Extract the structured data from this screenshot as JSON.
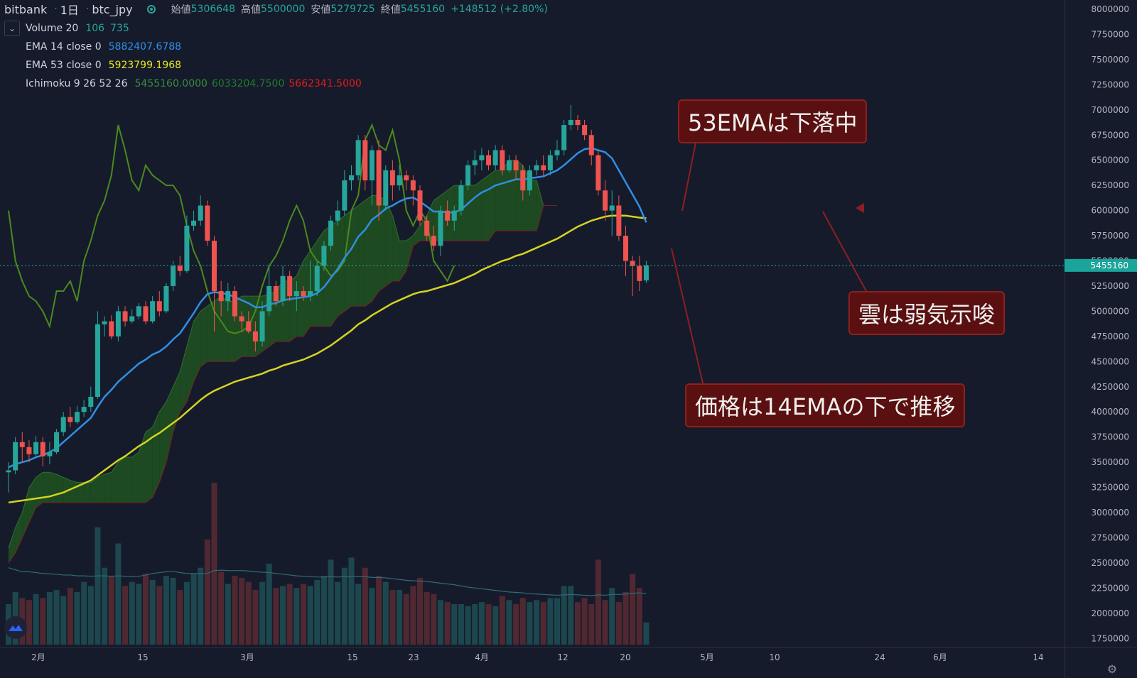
{
  "header": {
    "exchange": "bitbank",
    "interval": "1日",
    "symbol": "btc_jpy",
    "open_label": "始値",
    "open_value": "5306648",
    "high_label": "高値",
    "high_value": "5500000",
    "low_label": "安値",
    "low_value": "5279725",
    "close_label": "終値",
    "close_value": "5455160",
    "change": "+148512 (+2.80%)"
  },
  "indicators": {
    "volume": {
      "name": "Volume 20",
      "v1": "106",
      "v2": "735",
      "color": "#26a69a"
    },
    "ema14": {
      "name": "EMA 14 close 0",
      "value": "5882407.6788",
      "color": "#2f8fe5"
    },
    "ema53": {
      "name": "EMA 53 close 0",
      "value": "5923799.1968",
      "color": "#e6e621"
    },
    "ichimoku": {
      "name": "Ichimoku 9 26 52 26",
      "v1": "5455160.0000",
      "v2": "6033204.7500",
      "v3": "5662341.5000",
      "c1": "#388e3c",
      "c2": "#1b5e20",
      "c3": "#e21a1a"
    }
  },
  "price_axis": {
    "ticks": [
      "8000000",
      "7750000",
      "7500000",
      "7250000",
      "7000000",
      "6750000",
      "6500000",
      "6250000",
      "6000000",
      "5750000",
      "5500000",
      "5250000",
      "5000000",
      "4750000",
      "4500000",
      "4250000",
      "4000000",
      "3750000",
      "3500000",
      "3250000",
      "3000000",
      "2750000",
      "2500000",
      "2250000",
      "2000000",
      "1750000"
    ],
    "current_price": "5455160"
  },
  "time_axis": {
    "labels": [
      "2月",
      "15",
      "3月",
      "15",
      "23",
      "4月",
      "12",
      "20",
      "5月",
      "10",
      "24",
      "6月",
      "14"
    ]
  },
  "callouts": {
    "ema53": "53EMAは下落中",
    "cloud": "雲は弱気示唆",
    "price": "価格は14EMAの下で推移"
  },
  "colors": {
    "background": "#161b2b",
    "up": "#26a69a",
    "down": "#ef5350",
    "ema14": "#2f8fe5",
    "ema53": "#d4d422",
    "chikou": "#4a8a1e",
    "cloud_bull": "#1f4d21",
    "cloud_bear": "#5a1e1e",
    "callout_bg": "#5a1010"
  },
  "chart_data": {
    "type": "candlestick",
    "title": "",
    "x_range": [
      "2021-01-25",
      "2021-06-18"
    ],
    "ylim": [
      1700000,
      8100000
    ],
    "candles": [
      [
        3400000,
        3420000,
        3500000,
        3200000
      ],
      [
        3420000,
        3700000,
        3750000,
        3380000
      ],
      [
        3700000,
        3650000,
        3800000,
        3500000
      ],
      [
        3650000,
        3580000,
        3720000,
        3500000
      ],
      [
        3580000,
        3700000,
        3760000,
        3540000
      ],
      [
        3700000,
        3560000,
        3750000,
        3460000
      ],
      [
        3560000,
        3600000,
        3700000,
        3480000
      ],
      [
        3600000,
        3800000,
        3830000,
        3580000
      ],
      [
        3800000,
        3950000,
        4000000,
        3760000
      ],
      [
        3950000,
        3900000,
        4050000,
        3850000
      ],
      [
        3900000,
        4000000,
        4060000,
        3880000
      ],
      [
        4000000,
        4050000,
        4120000,
        3950000
      ],
      [
        4050000,
        4150000,
        4250000,
        4000000
      ],
      [
        4150000,
        4870000,
        5000000,
        4130000
      ],
      [
        4870000,
        4900000,
        4950000,
        4750000
      ],
      [
        4900000,
        4750000,
        4960000,
        4720000
      ],
      [
        4750000,
        5000000,
        5050000,
        4700000
      ],
      [
        5000000,
        4900000,
        5050000,
        4850000
      ],
      [
        4900000,
        4950000,
        5020000,
        4880000
      ],
      [
        4950000,
        5050000,
        5080000,
        4920000
      ],
      [
        5050000,
        4900000,
        5100000,
        4870000
      ],
      [
        4900000,
        5100000,
        5150000,
        4880000
      ],
      [
        5100000,
        5000000,
        5200000,
        4950000
      ],
      [
        5000000,
        5250000,
        5280000,
        4980000
      ],
      [
        5250000,
        5450000,
        5500000,
        5200000
      ],
      [
        5450000,
        5400000,
        5550000,
        5350000
      ],
      [
        5400000,
        5850000,
        5950000,
        5380000
      ],
      [
        5850000,
        5900000,
        6000000,
        5800000
      ],
      [
        5900000,
        6050000,
        6150000,
        5850000
      ],
      [
        6050000,
        5700000,
        6100000,
        5650000
      ],
      [
        5700000,
        5200000,
        5750000,
        4800000
      ],
      [
        5200000,
        5100000,
        5300000,
        4950000
      ],
      [
        5100000,
        5200000,
        5280000,
        5000000
      ],
      [
        5200000,
        4950000,
        5250000,
        4900000
      ],
      [
        4950000,
        4900000,
        5000000,
        4800000
      ],
      [
        4900000,
        4800000,
        5000000,
        4780000
      ],
      [
        4800000,
        4700000,
        4900000,
        4600000
      ],
      [
        4700000,
        5000000,
        5100000,
        4650000
      ],
      [
        5000000,
        5250000,
        5450000,
        4950000
      ],
      [
        5250000,
        5100000,
        5300000,
        5050000
      ],
      [
        5100000,
        5350000,
        5450000,
        5050000
      ],
      [
        5350000,
        5150000,
        5400000,
        5100000
      ],
      [
        5150000,
        5200000,
        5300000,
        5000000
      ],
      [
        5200000,
        5150000,
        5250000,
        5100000
      ],
      [
        5150000,
        5200000,
        5500000,
        5100000
      ],
      [
        5200000,
        5450000,
        5500000,
        5150000
      ],
      [
        5450000,
        5650000,
        5700000,
        5400000
      ],
      [
        5650000,
        5900000,
        5950000,
        5600000
      ],
      [
        5900000,
        6000000,
        6100000,
        5850000
      ],
      [
        6000000,
        6300000,
        6400000,
        5950000
      ],
      [
        6300000,
        6350000,
        6450000,
        6200000
      ],
      [
        6350000,
        6700000,
        6750000,
        6300000
      ],
      [
        6700000,
        6300000,
        6750000,
        6200000
      ],
      [
        6300000,
        6600000,
        6650000,
        6050000
      ],
      [
        6600000,
        6050000,
        6700000,
        5900000
      ],
      [
        6050000,
        6400000,
        6450000,
        6000000
      ],
      [
        6400000,
        6250000,
        6500000,
        6100000
      ],
      [
        6250000,
        6350000,
        6450000,
        6200000
      ],
      [
        6350000,
        6300000,
        6400000,
        6200000
      ],
      [
        6300000,
        6200000,
        6350000,
        6050000
      ],
      [
        6200000,
        5900000,
        6250000,
        5850000
      ],
      [
        5900000,
        5750000,
        5950000,
        5700000
      ],
      [
        5750000,
        5650000,
        5850000,
        5600000
      ],
      [
        5650000,
        6000000,
        6050000,
        5550000
      ],
      [
        6000000,
        5900000,
        6100000,
        5850000
      ],
      [
        5900000,
        6000000,
        6050000,
        5800000
      ],
      [
        6000000,
        6250000,
        6300000,
        5950000
      ],
      [
        6250000,
        6450000,
        6500000,
        6200000
      ],
      [
        6450000,
        6500000,
        6600000,
        6350000
      ],
      [
        6500000,
        6550000,
        6620000,
        6400000
      ],
      [
        6550000,
        6450000,
        6600000,
        6400000
      ],
      [
        6450000,
        6600000,
        6650000,
        6400000
      ],
      [
        6600000,
        6400000,
        6650000,
        6350000
      ],
      [
        6400000,
        6500000,
        6550000,
        6380000
      ],
      [
        6500000,
        6400000,
        6550000,
        6300000
      ],
      [
        6400000,
        6200000,
        6450000,
        6100000
      ],
      [
        6200000,
        6400000,
        6450000,
        6150000
      ],
      [
        6400000,
        6450000,
        6500000,
        6350000
      ],
      [
        6450000,
        6400000,
        6550000,
        6350000
      ],
      [
        6400000,
        6550000,
        6600000,
        6350000
      ],
      [
        6550000,
        6600000,
        6700000,
        6500000
      ],
      [
        6600000,
        6850000,
        6900000,
        6550000
      ],
      [
        6850000,
        6900000,
        7050000,
        6800000
      ],
      [
        6900000,
        6850000,
        6950000,
        6800000
      ],
      [
        6850000,
        6750000,
        6900000,
        6700000
      ],
      [
        6750000,
        6550000,
        6800000,
        6450000
      ],
      [
        6550000,
        6200000,
        6600000,
        6150000
      ],
      [
        6200000,
        6000000,
        6300000,
        5900000
      ],
      [
        6000000,
        6050000,
        6200000,
        5750000
      ],
      [
        6050000,
        5750000,
        6150000,
        5700000
      ],
      [
        5750000,
        5500000,
        5850000,
        5350000
      ],
      [
        5500000,
        5450000,
        5550000,
        5150000
      ],
      [
        5450000,
        5300000,
        5550000,
        5200000
      ],
      [
        5306648,
        5455160,
        5500000,
        5279725
      ]
    ],
    "ema14": [
      3450000,
      3480000,
      3500000,
      3520000,
      3550000,
      3570000,
      3600000,
      3640000,
      3700000,
      3760000,
      3820000,
      3880000,
      3940000,
      4050000,
      4150000,
      4220000,
      4300000,
      4360000,
      4420000,
      4480000,
      4520000,
      4570000,
      4600000,
      4650000,
      4720000,
      4780000,
      4880000,
      4980000,
      5090000,
      5170000,
      5190000,
      5180000,
      5170000,
      5140000,
      5110000,
      5080000,
      5040000,
      5040000,
      5070000,
      5080000,
      5110000,
      5120000,
      5130000,
      5140000,
      5150000,
      5180000,
      5240000,
      5330000,
      5420000,
      5530000,
      5620000,
      5740000,
      5810000,
      5910000,
      5960000,
      6020000,
      6050000,
      6090000,
      6120000,
      6130000,
      6090000,
      6040000,
      5990000,
      5990000,
      5980000,
      5980000,
      6010000,
      6070000,
      6130000,
      6180000,
      6210000,
      6250000,
      6270000,
      6290000,
      6310000,
      6310000,
      6320000,
      6330000,
      6340000,
      6370000,
      6400000,
      6450000,
      6510000,
      6570000,
      6610000,
      6620000,
      6600000,
      6580000,
      6520000,
      6400000,
      6280000,
      6160000,
      6040000,
      5882407
    ],
    "ema53": [
      3100000,
      3110000,
      3120000,
      3130000,
      3140000,
      3150000,
      3160000,
      3180000,
      3200000,
      3230000,
      3260000,
      3290000,
      3320000,
      3370000,
      3420000,
      3470000,
      3520000,
      3560000,
      3610000,
      3660000,
      3700000,
      3750000,
      3790000,
      3840000,
      3890000,
      3940000,
      4000000,
      4060000,
      4120000,
      4170000,
      4210000,
      4240000,
      4270000,
      4300000,
      4320000,
      4340000,
      4360000,
      4380000,
      4410000,
      4430000,
      4460000,
      4480000,
      4500000,
      4520000,
      4550000,
      4580000,
      4620000,
      4660000,
      4710000,
      4760000,
      4810000,
      4870000,
      4910000,
      4960000,
      5000000,
      5040000,
      5080000,
      5110000,
      5140000,
      5170000,
      5190000,
      5200000,
      5220000,
      5240000,
      5260000,
      5280000,
      5310000,
      5340000,
      5370000,
      5410000,
      5440000,
      5470000,
      5500000,
      5520000,
      5550000,
      5570000,
      5600000,
      5630000,
      5660000,
      5690000,
      5720000,
      5760000,
      5800000,
      5840000,
      5870000,
      5900000,
      5920000,
      5940000,
      5950000,
      5950000,
      5950000,
      5940000,
      5930000,
      5923799
    ],
    "chikou": [
      6000000,
      5500000,
      5300000,
      5150000,
      5100000,
      5000000,
      4850000,
      5200000,
      5200000,
      5300000,
      5100000,
      5500000,
      5700000,
      5950000,
      6100000,
      6350000,
      6850000,
      6600000,
      6300000,
      6200000,
      6450000,
      6350000,
      6300000,
      6250000,
      6250000,
      6150000,
      5850000,
      5600000,
      5450000,
      5200000,
      5000000,
      4900000,
      4800000,
      4780000,
      4800000,
      4850000,
      5000000,
      5250000,
      5450000,
      5550000,
      5700000,
      5900000,
      6050000,
      5900000,
      5600000,
      5500000,
      5450000,
      5350000,
      5400000,
      5500000,
      6000000,
      6150000,
      6700000,
      6850000,
      6650000,
      6600000,
      6800000,
      6500000,
      6000000,
      5850000,
      6000000,
      5900000,
      5500000,
      5400000,
      5300000,
      5455160
    ],
    "cloud": {
      "span_a": [
        2650000,
        2850000,
        3000000,
        3250000,
        3350000,
        3400000,
        3400000,
        3380000,
        3350000,
        3320000,
        3300000,
        3300000,
        3300000,
        3350000,
        3380000,
        3400000,
        3500000,
        3550000,
        3550000,
        3600000,
        3800000,
        3850000,
        4000000,
        4100000,
        4250000,
        4400000,
        4650000,
        4900000,
        5000000,
        5050000,
        5100000,
        5150000,
        5100000,
        5100000,
        5150000,
        5150000,
        5150000,
        5150000,
        5170000,
        5200000,
        5300000,
        5300000,
        5350000,
        5500000,
        5600000,
        5700000,
        5800000,
        5850000,
        5900000,
        5950000,
        6000000,
        6050000,
        6100000,
        6150000,
        6150000,
        6100000,
        5950000,
        5700000,
        5700000,
        5750000,
        5850000,
        5950000,
        6100000,
        6150000,
        6200000,
        6250000,
        6250000,
        6250000,
        6250000,
        6300000,
        6350000,
        6400000,
        6400000,
        6500000,
        6500000,
        6450000,
        6300000,
        6300000,
        6050000,
        6050000,
        6050000
      ],
      "span_b": [
        2500000,
        2600000,
        2750000,
        2900000,
        3050000,
        3100000,
        3100000,
        3100000,
        3100000,
        3100000,
        3100000,
        3100000,
        3100000,
        3100000,
        3100000,
        3100000,
        3100000,
        3100000,
        3100000,
        3100000,
        3100000,
        3150000,
        3300000,
        3500000,
        3800000,
        4000000,
        4100000,
        4300000,
        4450000,
        4500000,
        4500000,
        4500000,
        4500000,
        4500000,
        4550000,
        4550000,
        4550000,
        4600000,
        4650000,
        4700000,
        4700000,
        4700000,
        4750000,
        4750000,
        4850000,
        4850000,
        4850000,
        4850000,
        4950000,
        5000000,
        5050000,
        5050000,
        5050000,
        5100000,
        5200000,
        5250000,
        5300000,
        5300000,
        5400000,
        5650000,
        5700000,
        5700000,
        5700000,
        5700000,
        5700000,
        5700000,
        5700000,
        5700000,
        5700000,
        5700000,
        5700000,
        5800000,
        5800000,
        5800000,
        5800000,
        5800000,
        5800000,
        5800000,
        6050000,
        6050000,
        6050000
      ]
    },
    "volume": [
      1000,
      1300,
      1150,
      1100,
      1250,
      1150,
      1300,
      1350,
      1200,
      1400,
      1300,
      1550,
      1450,
      2900,
      1900,
      1700,
      2500,
      1450,
      1550,
      1500,
      1750,
      1600,
      1450,
      1700,
      1650,
      1350,
      1550,
      1750,
      1900,
      2600,
      4000,
      1800,
      1500,
      1700,
      1650,
      1550,
      1350,
      1550,
      2000,
      1400,
      1450,
      1500,
      1400,
      1500,
      1450,
      1600,
      1700,
      2100,
      1550,
      1900,
      2150,
      1500,
      1900,
      1400,
      1700,
      1550,
      1350,
      1350,
      1250,
      1450,
      1650,
      1300,
      1250,
      1100,
      1050,
      1000,
      1000,
      950,
      1000,
      1050,
      1000,
      950,
      1200,
      1100,
      1000,
      1150,
      1050,
      1100,
      1050,
      1150,
      1150,
      1450,
      1450,
      1050,
      1150,
      1000,
      2100,
      1100,
      1400,
      1050,
      1300,
      1750,
      1400,
      550
    ],
    "volume_ma": [
      1900,
      1850,
      1800,
      1800,
      1780,
      1760,
      1750,
      1740,
      1720,
      1720,
      1700,
      1700,
      1690,
      1700,
      1700,
      1690,
      1700,
      1690,
      1680,
      1690,
      1720,
      1760,
      1780,
      1800,
      1810,
      1780,
      1760,
      1760,
      1750,
      1760,
      1830,
      1840,
      1830,
      1830,
      1830,
      1820,
      1800,
      1790,
      1780,
      1760,
      1740,
      1720,
      1700,
      1690,
      1680,
      1670,
      1670,
      1680,
      1670,
      1680,
      1690,
      1680,
      1680,
      1660,
      1660,
      1650,
      1630,
      1610,
      1590,
      1580,
      1570,
      1560,
      1540,
      1520,
      1500,
      1480,
      1450,
      1420,
      1400,
      1380,
      1360,
      1340,
      1320,
      1300,
      1290,
      1280,
      1260,
      1250,
      1240,
      1230,
      1220,
      1230,
      1240,
      1230,
      1220,
      1210,
      1230,
      1220,
      1240,
      1240,
      1250,
      1270,
      1280,
      1260
    ]
  }
}
